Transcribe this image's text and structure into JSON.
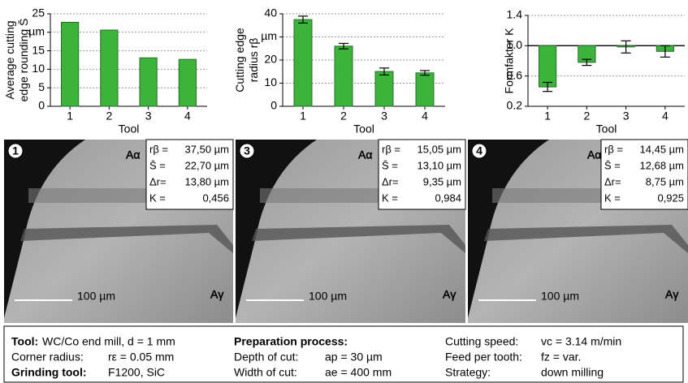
{
  "chart_data": [
    {
      "type": "bar",
      "ylabel": [
        "Average cutting",
        "edge rounding S̄"
      ],
      "xlabel": "Tool",
      "categories": [
        "1",
        "2",
        "3",
        "4"
      ],
      "values": [
        22.7,
        20.6,
        13.1,
        12.68
      ],
      "color": "#3cb43c",
      "ylim": [
        0,
        25
      ],
      "yticks": [
        0,
        5,
        10,
        15,
        {
          "value": 20,
          "label": "µm"
        },
        25
      ],
      "grid": true
    },
    {
      "type": "bar",
      "ylabel": [
        "Cutting edge",
        "radius rβ"
      ],
      "xlabel": "Tool",
      "categories": [
        "1",
        "2",
        "3",
        "4"
      ],
      "values": [
        37.5,
        26,
        15.05,
        14.45
      ],
      "errors": [
        1.5,
        1.2,
        1.5,
        1.0
      ],
      "color": "#3cb43c",
      "ylim": [
        0,
        40
      ],
      "yticks": [
        0,
        10,
        20,
        {
          "value": 30,
          "label": "µm"
        },
        40
      ],
      "grid": true
    },
    {
      "type": "bar",
      "ylabel": [
        "Formfaktor Κ"
      ],
      "xlabel": "Tool",
      "categories": [
        "1",
        "2",
        "3",
        "4"
      ],
      "values": [
        0.456,
        0.78,
        0.984,
        0.925
      ],
      "errors": [
        0.06,
        0.04,
        0.08,
        0.075
      ],
      "color": "#3cb43c",
      "baseline": 1,
      "ylim": [
        0.2,
        1.4
      ],
      "yticks": [
        0.2,
        0.6,
        {
          "value": 1,
          "label": "1.0"
        },
        1.4
      ],
      "grid": true
    }
  ],
  "images": [
    {
      "number": "1",
      "face_a": "Aα",
      "face_b": "Aγ",
      "scale": "100 µm",
      "rows": [
        {
          "label": "rβ =",
          "value": "37,50 µm"
        },
        {
          "label": "S̄ =",
          "value": "22,70 µm"
        },
        {
          "label": "Δr=",
          "value": "13,80 µm"
        },
        {
          "label": "Κ =",
          "value": "0,456"
        }
      ]
    },
    {
      "number": "3",
      "face_a": "Aα",
      "face_b": "Aγ",
      "scale": "100 µm",
      "rows": [
        {
          "label": "rβ =",
          "value": "15,05 µm"
        },
        {
          "label": "S̄ =",
          "value": "13,10 µm"
        },
        {
          "label": "Δr=",
          "value": "9,35 µm"
        },
        {
          "label": "Κ =",
          "value": "0,984"
        }
      ]
    },
    {
      "number": "4",
      "face_a": "Aα",
      "face_b": "Aγ",
      "scale": "100 µm",
      "rows": [
        {
          "label": "rβ =",
          "value": "14,45 µm"
        },
        {
          "label": "S̄ =",
          "value": "12,68 µm"
        },
        {
          "label": "Δr=",
          "value": "8,75 µm"
        },
        {
          "label": "Κ =",
          "value": "0,925"
        }
      ]
    }
  ],
  "info": {
    "columns": [
      [
        {
          "key": "Tool:",
          "bold": true,
          "value": "WC/Co end mill, d = 1 mm"
        },
        {
          "key": "Corner radius:",
          "value": "rε = 0.05 mm"
        },
        {
          "key": "Grinding tool:",
          "bold": true,
          "value": "F1200, SiC"
        }
      ],
      [
        {
          "key": "Preparation process:",
          "bold": true
        },
        {
          "key": "Depth of cut:",
          "value": "ap =  30 µm"
        },
        {
          "key": "Width of cut:",
          "value": "ae = 400 mm"
        }
      ],
      [
        {
          "key": "Cutting speed:",
          "value": "vc = 3.14 m/min"
        },
        {
          "key": "Feed per tooth:",
          "value": "fz = var."
        },
        {
          "key": "Strategy:",
          "value": "down milling"
        }
      ]
    ]
  }
}
